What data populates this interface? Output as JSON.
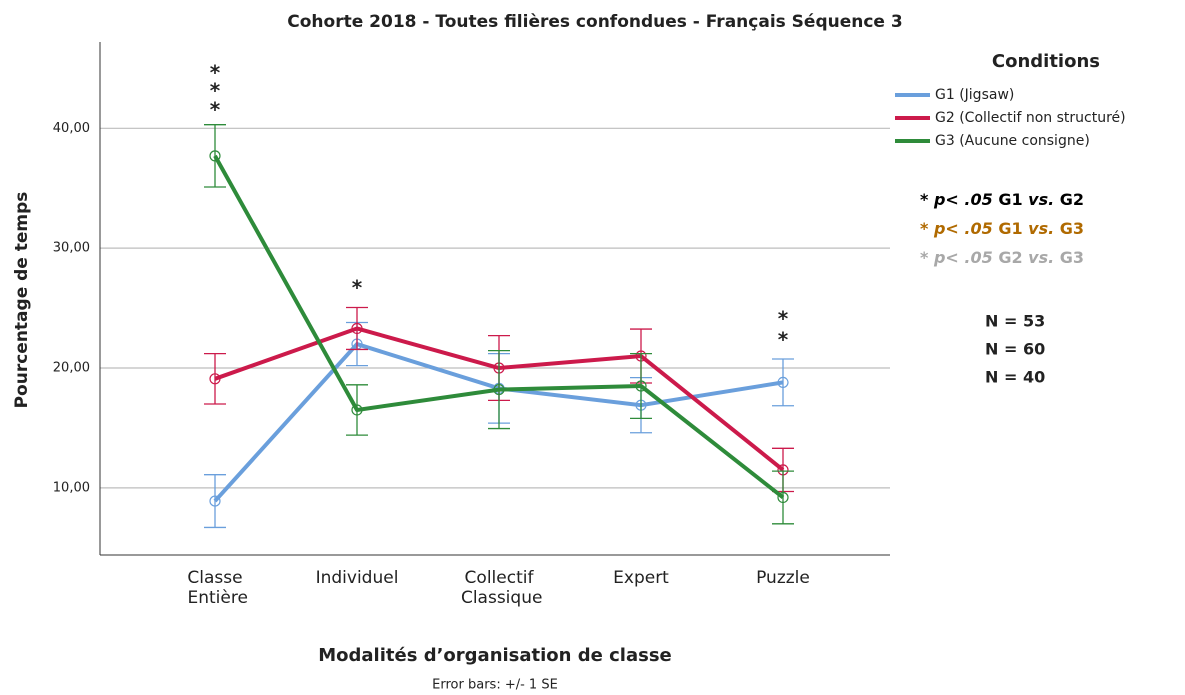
{
  "chart_data": {
    "type": "line",
    "title": "Cohorte 2018 - Toutes filières confondues - Français Séquence 3",
    "x_label": "Modalités d’organisation de classe",
    "y_label": "Pourcentage de temps",
    "footnote": "Error bars: +/- 1 SE",
    "legend_title": "Conditions",
    "categories": [
      "Classe Entière",
      "Individuel",
      "Collectif Classique",
      "Expert",
      "Puzzle"
    ],
    "ylim": [
      4.4,
      47.2
    ],
    "yticks": [
      {
        "value": 10,
        "label": "10,00"
      },
      {
        "value": 20,
        "label": "20,00"
      },
      {
        "value": 30,
        "label": "30,00"
      },
      {
        "value": 40,
        "label": "40,00"
      }
    ],
    "grid": true,
    "series": [
      {
        "name": "G1 (Jigsaw)",
        "color": "#6a9fdc",
        "values": [
          8.9,
          22.0,
          18.3,
          16.9,
          18.8
        ],
        "errors": [
          2.2,
          1.8,
          2.9,
          2.3,
          1.95
        ]
      },
      {
        "name": "G2 (Collectif non structuré)",
        "color": "#cc1a4b",
        "values": [
          19.1,
          23.3,
          20.0,
          21.0,
          11.5
        ],
        "errors": [
          2.1,
          1.75,
          2.7,
          2.25,
          1.8
        ]
      },
      {
        "name": "G3 (Aucune consigne)",
        "color": "#2e8b3a",
        "values": [
          37.7,
          16.5,
          18.2,
          18.5,
          9.2
        ],
        "errors": [
          2.6,
          2.1,
          3.25,
          2.7,
          2.2
        ]
      }
    ],
    "annotations": [
      {
        "text": "*",
        "category": 0,
        "color": "#000000"
      },
      {
        "text": "*",
        "category": 0,
        "color": "#b06a00"
      },
      {
        "text": "*",
        "category": 0,
        "color": "#a8a8a8"
      },
      {
        "text": "*",
        "category": 1,
        "color": "#a8a8a8"
      },
      {
        "text": "*",
        "category": 4,
        "color": "#000000"
      },
      {
        "text": "*",
        "category": 4,
        "color": "#b06a00"
      }
    ],
    "significance_legend": [
      {
        "color": "#000000",
        "star": "*",
        "p": "p< .05",
        "a": "G1",
        "vs": "vs.",
        "b": "G2"
      },
      {
        "color": "#b06a00",
        "star": "*",
        "p": "p< .05",
        "a": "G1",
        "vs": "vs.",
        "b": "G3"
      },
      {
        "color": "#a8a8a8",
        "star": "*",
        "p": "p< .05",
        "a": "G2",
        "vs": "vs.",
        "b": "G3"
      }
    ],
    "sample_sizes": [
      {
        "label": "N = 53",
        "color": "#5b9bd5"
      },
      {
        "label": "N = 60",
        "color": "#c00000"
      },
      {
        "label": "N = 40",
        "color": "#548235"
      }
    ]
  }
}
